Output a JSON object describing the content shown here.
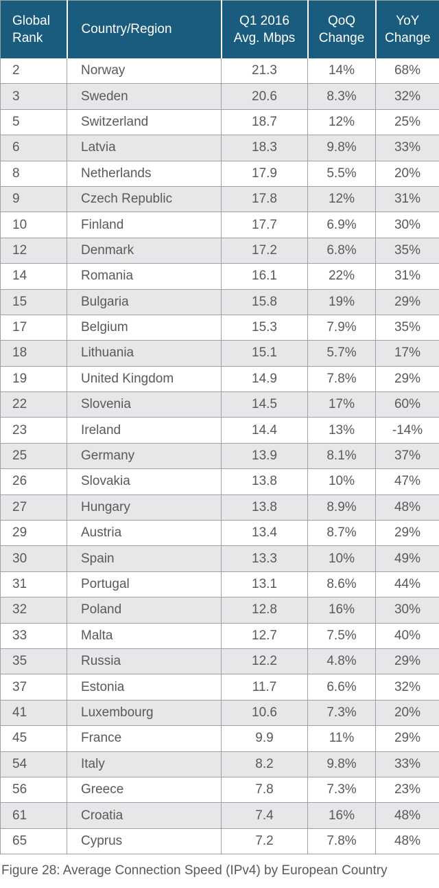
{
  "chart_data": {
    "type": "table",
    "title": "Figure 28: Average Connection Speed (IPv4) by European Country",
    "columns": [
      "Global Rank",
      "Country/Region",
      "Q1 2016 Avg. Mbps",
      "QoQ Change",
      "YoY Change"
    ],
    "column_labels_two_line": [
      "Global\nRank",
      "Country/Region",
      "Q1 2016\nAvg. Mbps",
      "QoQ\nChange",
      "YoY\nChange"
    ],
    "rows": [
      [
        "2",
        "Norway",
        "21.3",
        "14%",
        "68%"
      ],
      [
        "3",
        "Sweden",
        "20.6",
        "8.3%",
        "32%"
      ],
      [
        "5",
        "Switzerland",
        "18.7",
        "12%",
        "25%"
      ],
      [
        "6",
        "Latvia",
        "18.3",
        "9.8%",
        "33%"
      ],
      [
        "8",
        "Netherlands",
        "17.9",
        "5.5%",
        "20%"
      ],
      [
        "9",
        "Czech Republic",
        "17.8",
        "12%",
        "31%"
      ],
      [
        "10",
        "Finland",
        "17.7",
        "6.9%",
        "30%"
      ],
      [
        "12",
        "Denmark",
        "17.2",
        "6.8%",
        "35%"
      ],
      [
        "14",
        "Romania",
        "16.1",
        "22%",
        "31%"
      ],
      [
        "15",
        "Bulgaria",
        "15.8",
        "19%",
        "29%"
      ],
      [
        "17",
        "Belgium",
        "15.3",
        "7.9%",
        "35%"
      ],
      [
        "18",
        "Lithuania",
        "15.1",
        "5.7%",
        "17%"
      ],
      [
        "19",
        "United Kingdom",
        "14.9",
        "7.8%",
        "29%"
      ],
      [
        "22",
        "Slovenia",
        "14.5",
        "17%",
        "60%"
      ],
      [
        "23",
        "Ireland",
        "14.4",
        "13%",
        "-14%"
      ],
      [
        "25",
        "Germany",
        "13.9",
        "8.1%",
        "37%"
      ],
      [
        "26",
        "Slovakia",
        "13.8",
        "10%",
        "47%"
      ],
      [
        "27",
        "Hungary",
        "13.8",
        "8.9%",
        "48%"
      ],
      [
        "29",
        "Austria",
        "13.4",
        "8.7%",
        "29%"
      ],
      [
        "30",
        "Spain",
        "13.3",
        "10%",
        "49%"
      ],
      [
        "31",
        "Portugal",
        "13.1",
        "8.6%",
        "44%"
      ],
      [
        "32",
        "Poland",
        "12.8",
        "16%",
        "30%"
      ],
      [
        "33",
        "Malta",
        "12.7",
        "7.5%",
        "40%"
      ],
      [
        "35",
        "Russia",
        "12.2",
        "4.8%",
        "29%"
      ],
      [
        "37",
        "Estonia",
        "11.7",
        "6.6%",
        "32%"
      ],
      [
        "41",
        "Luxembourg",
        "10.6",
        "7.3%",
        "20%"
      ],
      [
        "45",
        "France",
        "9.9",
        "11%",
        "29%"
      ],
      [
        "54",
        "Italy",
        "8.2",
        "9.8%",
        "33%"
      ],
      [
        "56",
        "Greece",
        "7.8",
        "7.3%",
        "23%"
      ],
      [
        "61",
        "Croatia",
        "7.4",
        "16%",
        "48%"
      ],
      [
        "65",
        "Cyprus",
        "7.2",
        "7.8%",
        "48%"
      ]
    ]
  },
  "colors": {
    "header_bg": "#1a5c7e",
    "header_text": "#ffffff",
    "row_stripe": "#e6e7e8",
    "row_white": "#ffffff",
    "grid_border": "#9d9fa2",
    "body_text": "#58595b"
  }
}
